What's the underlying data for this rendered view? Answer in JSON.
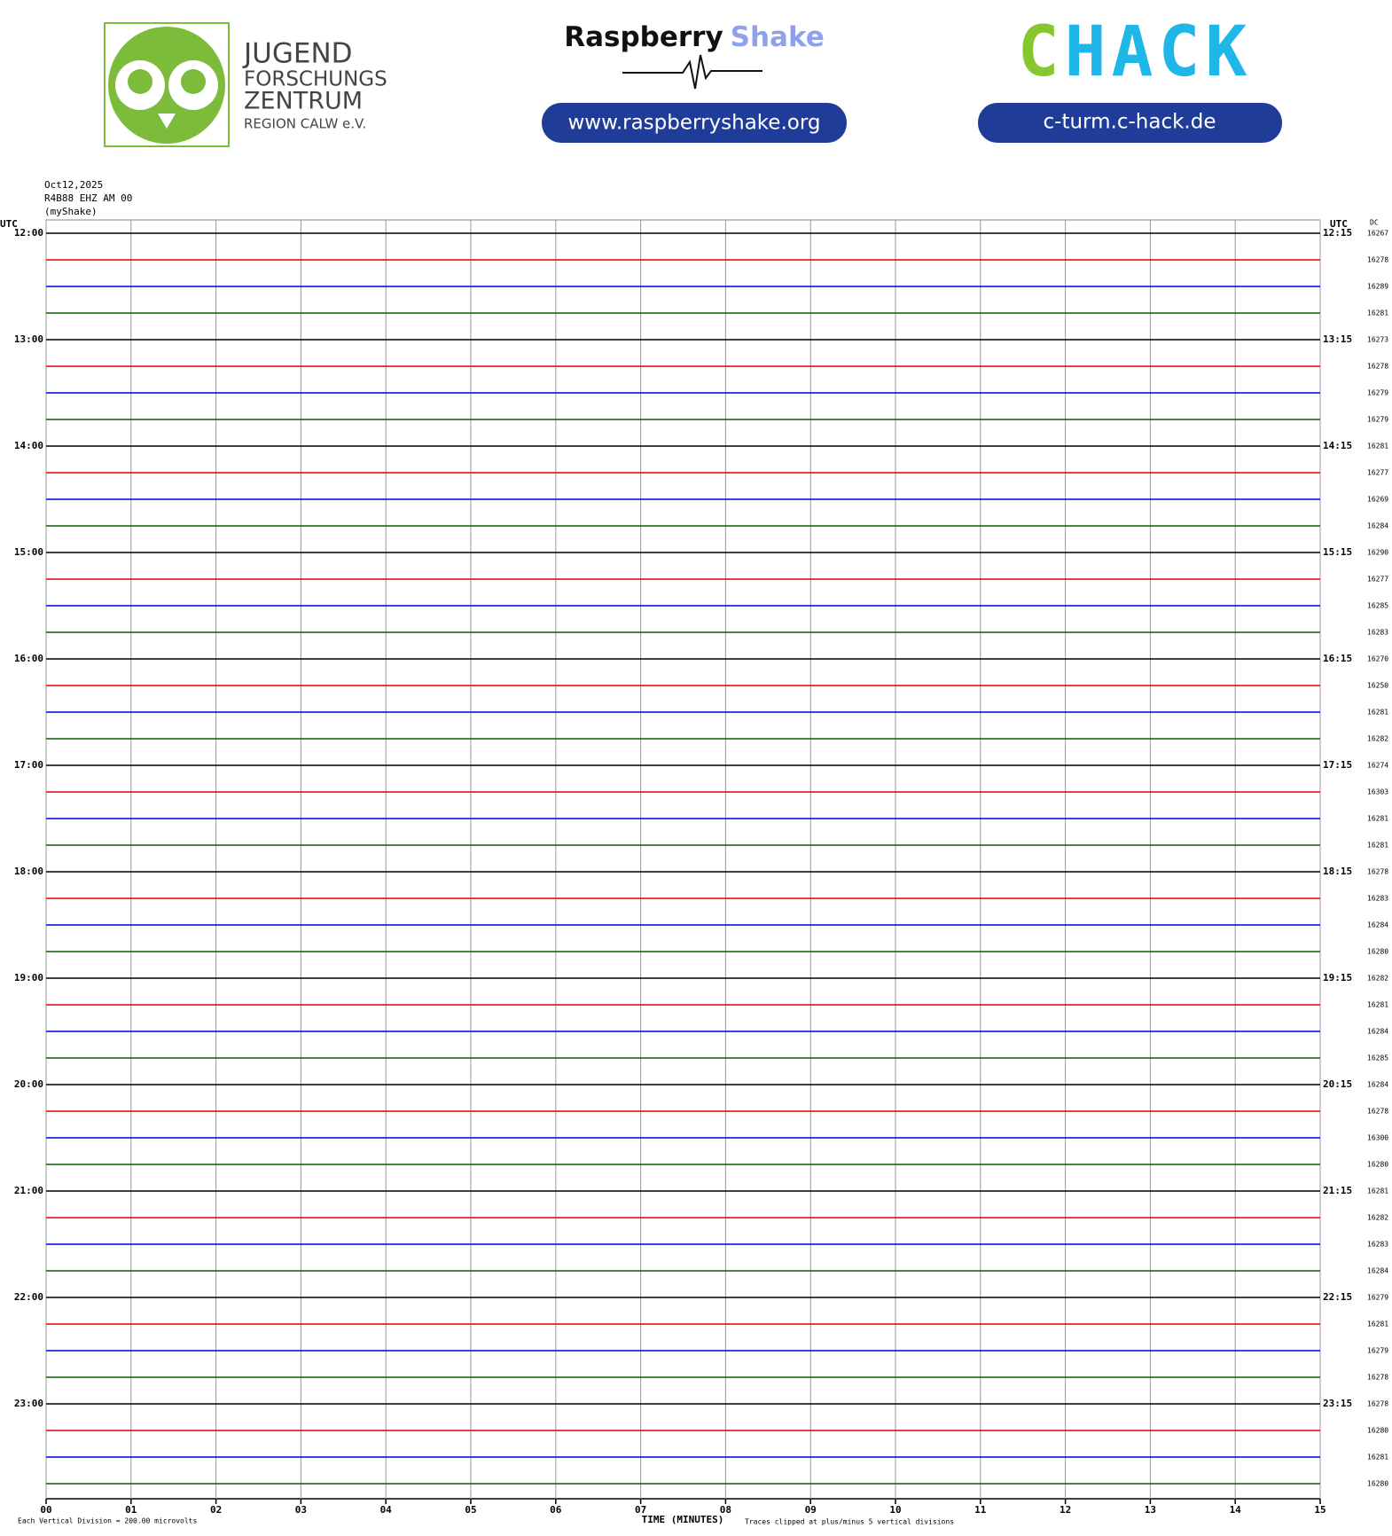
{
  "header": {
    "org_lines": [
      "JUGEND",
      "FORSCHUNGS",
      "ZENTRUM",
      "REGION CALW e.V."
    ],
    "rs_brand": {
      "first": "Raspberry",
      "second": "Shake"
    },
    "rs_url": "www.raspberryshake.org",
    "chack": {
      "first": "C",
      "rest": "HACK"
    },
    "chack_url": "c-turm.c-hack.de"
  },
  "chart_data": {
    "type": "helicorder",
    "date": "Oct12,2025",
    "station": "R4B88 EHZ AM 00",
    "source": "(myShake)",
    "left_axis_label": "UTC",
    "right_axis_label": "UTC",
    "dc_label": "DC",
    "colors": [
      "#000000",
      "#e00000",
      "#0000e0",
      "#006400"
    ],
    "left_labels": [
      "12:00",
      "13:00",
      "14:00",
      "15:00",
      "16:00",
      "17:00",
      "18:00",
      "19:00",
      "20:00",
      "21:00",
      "22:00",
      "23:00"
    ],
    "right_labels": [
      "12:15",
      "13:15",
      "14:15",
      "15:15",
      "16:15",
      "17:15",
      "18:15",
      "19:15",
      "20:15",
      "21:15",
      "22:15",
      "23:15"
    ],
    "dc": [
      16267,
      16278,
      16289,
      16281,
      16273,
      16278,
      16279,
      16279,
      16281,
      16277,
      16269,
      16284,
      16290,
      16277,
      16285,
      16283,
      16270,
      16250,
      16281,
      16282,
      16274,
      16303,
      16281,
      16281,
      16278,
      16283,
      16284,
      16280,
      16282,
      16281,
      16284,
      16285,
      16284,
      16278,
      16300,
      16280,
      16281,
      16282,
      16283,
      16284,
      16279,
      16281,
      16279,
      16278,
      16278,
      16280,
      16281,
      16280
    ],
    "xlim": [
      0,
      15
    ],
    "xticks": [
      {
        "value": 0,
        "label": "00"
      },
      {
        "value": 1,
        "label": "01"
      },
      {
        "value": 2,
        "label": "02"
      },
      {
        "value": 3,
        "label": "03"
      },
      {
        "value": 4,
        "label": "04"
      },
      {
        "value": 5,
        "label": "05"
      },
      {
        "value": 6,
        "label": "06"
      },
      {
        "value": 7,
        "label": "07"
      },
      {
        "value": 8,
        "label": "08"
      },
      {
        "value": 9,
        "label": "09"
      },
      10,
      11,
      12,
      13,
      14,
      15
    ],
    "x_label": "TIME (MINUTES)",
    "footnote_left": "Each Vertical Division =  200.00 microvolts",
    "footnote_right": "Traces clipped at plus/minus 5 vertical divisions",
    "grid": true
  }
}
